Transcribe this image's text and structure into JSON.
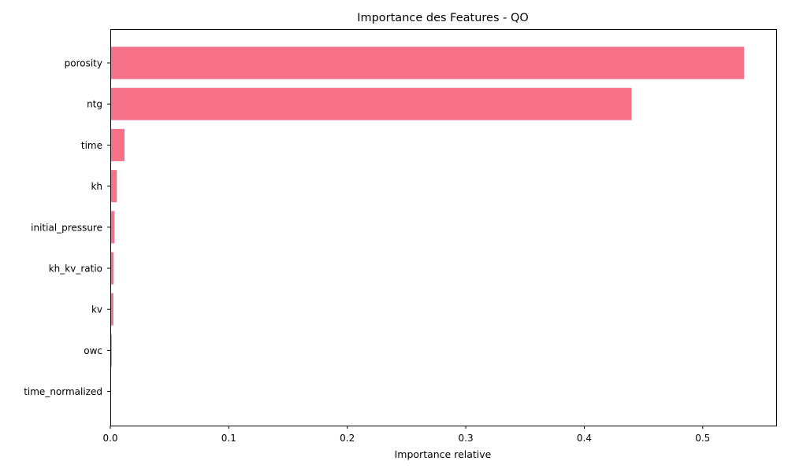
{
  "chart_data": {
    "type": "bar",
    "orientation": "horizontal",
    "title": "Importance des Features - QO",
    "xlabel": "Importance relative",
    "ylabel": "",
    "categories": [
      "porosity",
      "ntg",
      "time",
      "kh",
      "initial_pressure",
      "kh_kv_ratio",
      "kv",
      "owc",
      "time_normalized"
    ],
    "values": [
      0.535,
      0.44,
      0.012,
      0.0055,
      0.0035,
      0.0028,
      0.0026,
      0.0012,
      0.0002
    ],
    "xlim": [
      0,
      0.562
    ],
    "xticks": [
      "0.0",
      "0.1",
      "0.2",
      "0.3",
      "0.4",
      "0.5"
    ],
    "grid": false,
    "bar_color": "#f77189"
  }
}
